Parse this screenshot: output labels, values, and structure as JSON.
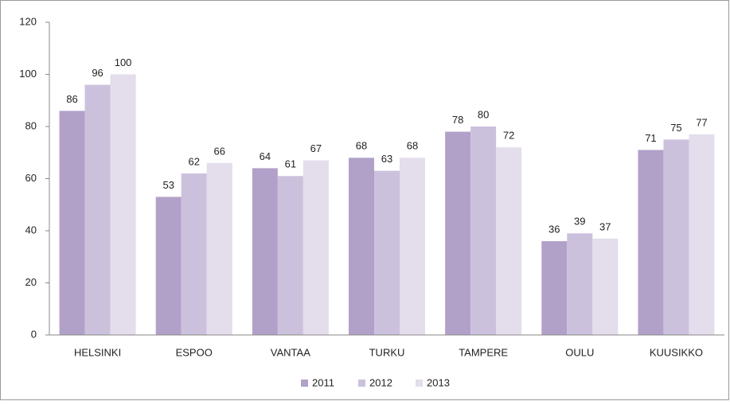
{
  "chart_data": {
    "type": "bar",
    "categories": [
      "HELSINKI",
      "ESPOO",
      "VANTAA",
      "TURKU",
      "TAMPERE",
      "OULU",
      "KUUSIKKO"
    ],
    "series": [
      {
        "name": "2011",
        "color": "#b1a1c9",
        "values": [
          86,
          53,
          64,
          68,
          78,
          36,
          71
        ]
      },
      {
        "name": "2012",
        "color": "#ccc1dd",
        "values": [
          96,
          62,
          61,
          63,
          80,
          39,
          75
        ]
      },
      {
        "name": "2013",
        "color": "#e3ddec",
        "values": [
          100,
          66,
          67,
          68,
          72,
          37,
          77
        ]
      }
    ],
    "ylim": [
      0,
      120
    ],
    "yticks": [
      0,
      20,
      40,
      60,
      80,
      100,
      120
    ],
    "grid": false,
    "legend": "bottom"
  }
}
